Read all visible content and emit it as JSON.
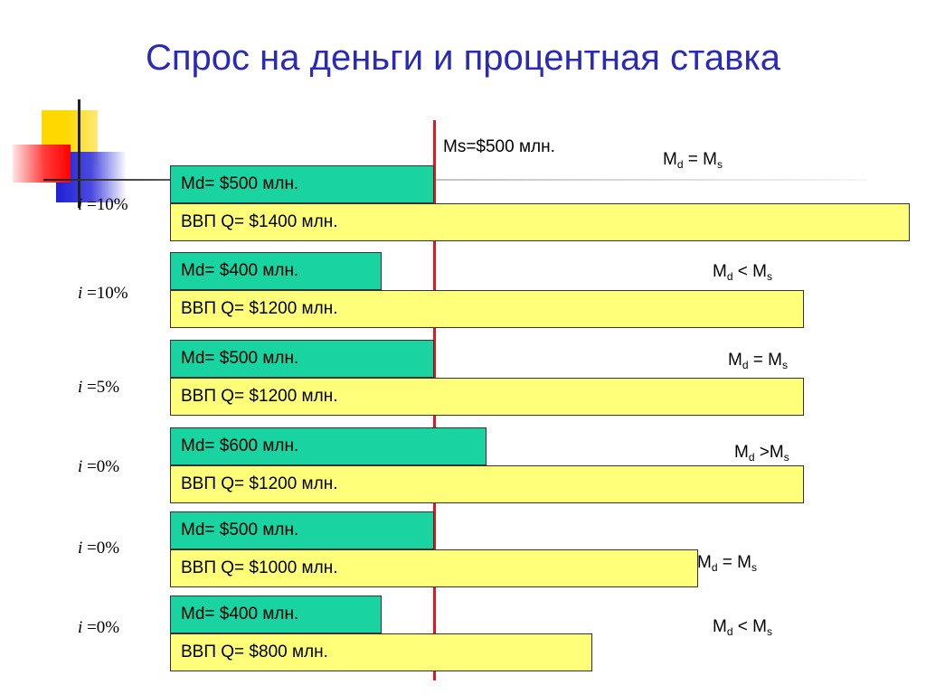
{
  "title": "Спрос на деньги и процентная ставка",
  "chart_data": {
    "type": "bar",
    "supply_line": {
      "label": "Ms=$500 млн.",
      "value": 500
    },
    "rows": [
      {
        "rate_var": "i",
        "rate_eq": " =10%",
        "md_label": "Md= $500 млн.",
        "md": 500,
        "gdp_label": "ВВП Q= $1400 млн.",
        "gdp": 1400,
        "rel_left": "M",
        "rel_left_sub": "d",
        "rel_op": " = M",
        "rel_right_sub": "s"
      },
      {
        "rate_var": "i",
        "rate_eq": " =10%",
        "md_label": "Md= $400 млн.",
        "md": 400,
        "gdp_label": "ВВП Q= $1200 млн.",
        "gdp": 1200,
        "rel_left": "M",
        "rel_left_sub": "d",
        "rel_op": " < M",
        "rel_right_sub": "s"
      },
      {
        "rate_var": "i",
        "rate_eq": " =5%",
        "md_label": "Md= $500 млн.",
        "md": 500,
        "gdp_label": "ВВП Q= $1200 млн.",
        "gdp": 1200,
        "rel_left": "M",
        "rel_left_sub": "d",
        "rel_op": " = M",
        "rel_right_sub": "s"
      },
      {
        "rate_var": "i",
        "rate_eq": " =0%",
        "md_label": "Md= $600 млн.",
        "md": 600,
        "gdp_label": "ВВП Q= $1200 млн.",
        "gdp": 1200,
        "rel_left": "M",
        "rel_left_sub": "d",
        "rel_op": " >M",
        "rel_right_sub": "s"
      },
      {
        "rate_var": "i",
        "rate_eq": " =0%",
        "md_label": "Md= $500 млн.",
        "md": 500,
        "gdp_label": "ВВП Q= $1000 млн.",
        "gdp": 1000,
        "rel_left": "M",
        "rel_left_sub": "d",
        "rel_op": " = M",
        "rel_right_sub": "s"
      },
      {
        "rate_var": "i",
        "rate_eq": " =0%",
        "md_label": "Md= $400 млн.",
        "md": 400,
        "gdp_label": "ВВП Q= $800 млн.",
        "gdp": 800,
        "rel_left": "M",
        "rel_left_sub": "d",
        "rel_op": " < M",
        "rel_right_sub": "s"
      }
    ]
  },
  "colors": {
    "title": "#2a2ab8",
    "md_bar": "#19d4a0",
    "gdp_bar": "#ffff7a",
    "supply_line": "#e8141f"
  }
}
